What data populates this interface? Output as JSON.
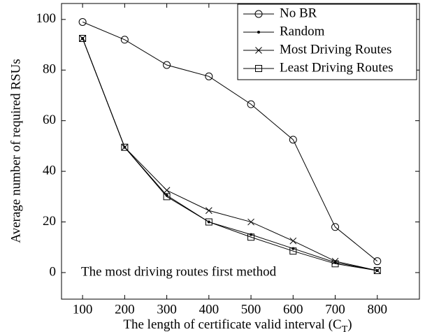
{
  "chart_data": {
    "type": "line",
    "xlabel": {
      "text": "The length of certificate valid interval (C",
      "subscript": "T",
      "suffix": ")"
    },
    "ylabel": "Average number of required RSUs",
    "annotation": "The most driving routes first method",
    "x": [
      100,
      200,
      300,
      400,
      500,
      600,
      700,
      800
    ],
    "series": [
      {
        "name": "No BR",
        "color": "#000000",
        "marker": "circle",
        "values": [
          99,
          92,
          82,
          77.5,
          66.5,
          52.5,
          18,
          4.5
        ]
      },
      {
        "name": "Random",
        "color": "#000000",
        "marker": "dot",
        "values": [
          92.5,
          49.5,
          30.5,
          20,
          15,
          9.5,
          4,
          0.8
        ]
      },
      {
        "name": "Most Driving Routes",
        "color": "#000000",
        "marker": "x",
        "values": [
          92.5,
          49.5,
          32.5,
          24.5,
          20,
          12.5,
          4.5,
          0.8
        ]
      },
      {
        "name": "Least Driving Routes",
        "color": "#000000",
        "marker": "square",
        "values": [
          92.5,
          49.5,
          30,
          20,
          14,
          8.5,
          3.5,
          0.8
        ]
      }
    ],
    "xlim": [
      50,
      900
    ],
    "ylim": [
      -10.5,
      106.3
    ],
    "xticks": [
      100,
      200,
      300,
      400,
      500,
      600,
      700,
      800
    ],
    "yticks": [
      0,
      20,
      40,
      60,
      80,
      100
    ],
    "legend": "upper right"
  }
}
